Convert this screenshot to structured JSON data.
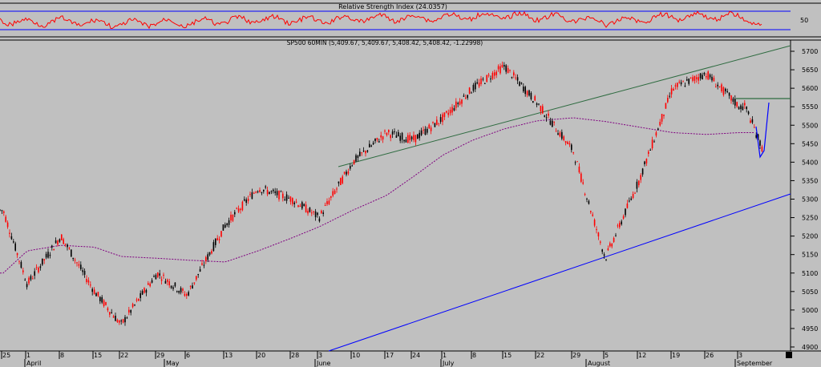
{
  "rsi_panel": {
    "title": "Relative Strength Index (24.0357)",
    "tick": "50"
  },
  "price_panel": {
    "title": "SP500 60MIN (5,409.67, 5,409.67, 5,408.42, 5,408.42, -1.22998)"
  },
  "colors": {
    "background": "#c0c0c0",
    "rsi_line": "#ff0000",
    "rsi_levels": "#0000ff",
    "up_bar": "#000000",
    "down_bar": "#ff0000",
    "moving_average": "#800080",
    "upper_trendline": "#2e6b40",
    "lower_trendline": "#0000ff",
    "resistance": "#2e6b40",
    "projection": "#0000ff"
  },
  "chart_data": {
    "type": "line",
    "subtype": "candlestick",
    "title": "SP500 60MIN (5,409.67, 5,409.67, 5,408.42, 5,408.42, -1.22998)",
    "ylim": [
      4900,
      5720
    ],
    "y_ticks": [
      4900,
      4950,
      5000,
      5050,
      5100,
      5150,
      5200,
      5250,
      5300,
      5350,
      5400,
      5450,
      5500,
      5550,
      5600,
      5650,
      5700
    ],
    "x_ticks": [
      "25",
      "1",
      "8",
      "15",
      "22",
      "29",
      "6",
      "13",
      "20",
      "28",
      "3",
      "10",
      "17",
      "24",
      "1",
      "8",
      "15",
      "22",
      "29",
      "5",
      "12",
      "19",
      "26",
      "3"
    ],
    "months": [
      "April",
      "May",
      "June",
      "July",
      "August",
      "September"
    ],
    "series": [
      {
        "name": "SP500 60MIN",
        "x": [
          "25",
          "1",
          "8",
          "15",
          "22",
          "29",
          "6",
          "13",
          "20",
          "28",
          "3",
          "10",
          "17",
          "24",
          "1",
          "8",
          "15",
          "22",
          "29",
          "5",
          "12",
          "19",
          "26",
          "3"
        ],
        "values": [
          5270,
          5070,
          5200,
          5050,
          4960,
          5100,
          5040,
          5230,
          5330,
          5300,
          5250,
          5400,
          5480,
          5460,
          5520,
          5600,
          5660,
          5560,
          5430,
          5140,
          5350,
          5600,
          5640,
          5550
        ]
      },
      {
        "name": "",
        "x": [
          "25",
          "1",
          "8",
          "15",
          "22",
          "29",
          "6",
          "13",
          "20",
          "28",
          "3",
          "10",
          "17",
          "24",
          "1",
          "8",
          "15",
          "22",
          "29",
          "5",
          "12",
          "19",
          "26",
          "3"
        ],
        "values": [
          5100,
          5160,
          5175,
          5170,
          5145,
          5140,
          5135,
          5130,
          5160,
          5195,
          5225,
          5270,
          5310,
          5360,
          5420,
          5460,
          5490,
          5512,
          5520,
          5510,
          5495,
          5480,
          5475,
          5480
        ]
      }
    ],
    "rsi": {
      "title": "Relative Strength Index (24.0357)",
      "levels": [
        70,
        30
      ],
      "tick": 50
    }
  }
}
